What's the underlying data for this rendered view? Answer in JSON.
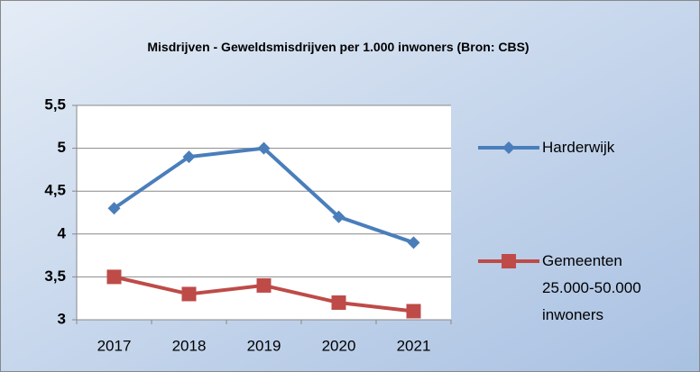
{
  "chart_data": {
    "type": "line",
    "title": "Misdrijven - Geweldsmisdrijven per 1.000 inwoners (Bron: CBS)",
    "categories": [
      "2017",
      "2018",
      "2019",
      "2020",
      "2021"
    ],
    "series": [
      {
        "name": "Harderwijk",
        "color": "#4a7ebb",
        "marker": "diamond",
        "values": [
          4.3,
          4.9,
          5.0,
          4.2,
          3.9
        ]
      },
      {
        "name": "Gemeenten 25.000-50.000 inwoners",
        "color": "#be4b48",
        "marker": "square",
        "values": [
          3.5,
          3.3,
          3.4,
          3.2,
          3.1
        ]
      }
    ],
    "ylim": [
      3,
      5.5
    ],
    "yticks": [
      3,
      {
        "value": 3.5,
        "label": "3,5"
      },
      4,
      {
        "value": 4.5,
        "label": "4,5"
      },
      5,
      {
        "value": 5.5,
        "label": "5,5"
      }
    ],
    "grid": true,
    "legend": "right"
  }
}
